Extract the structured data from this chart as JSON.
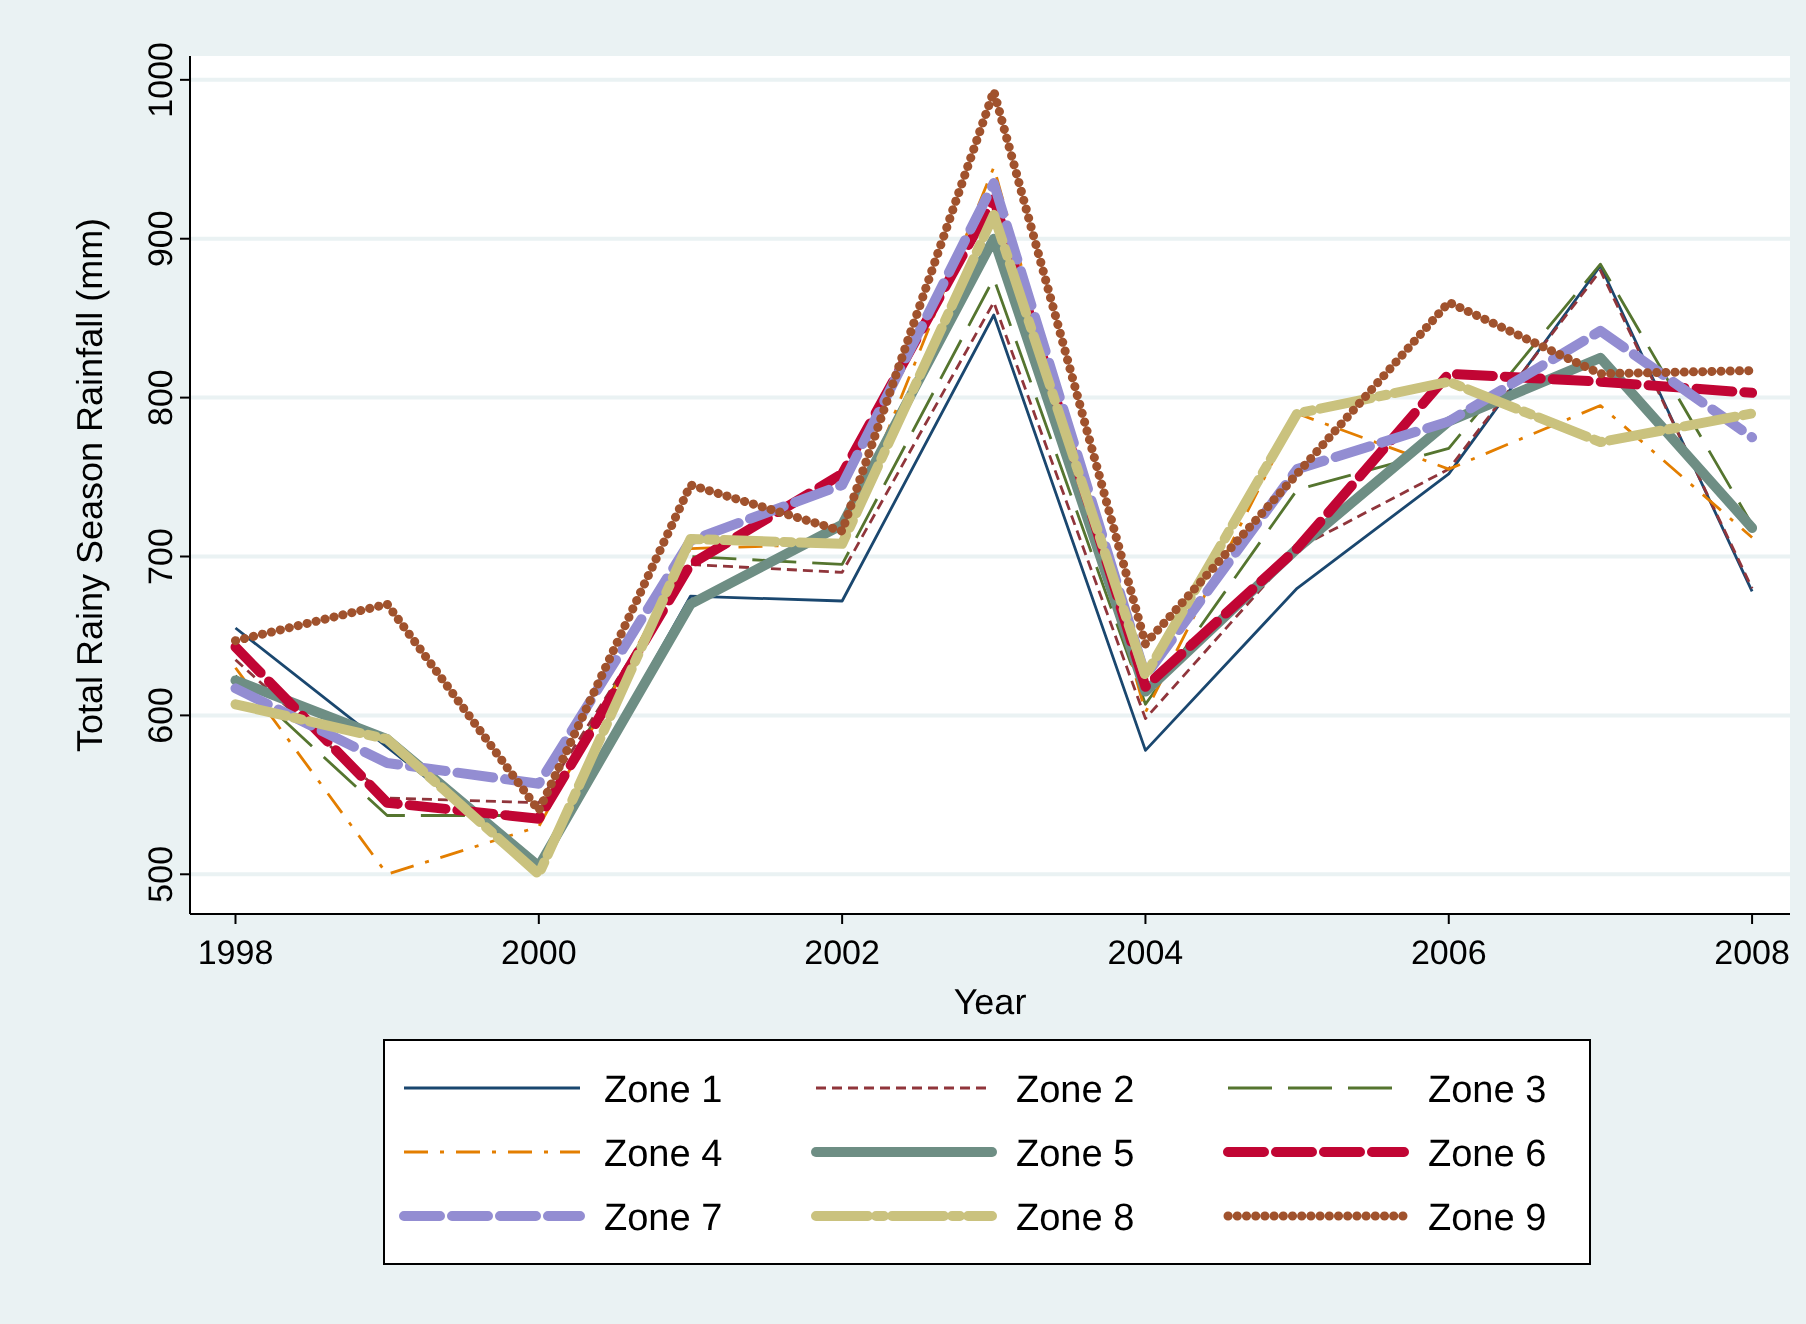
{
  "chart_data": {
    "type": "line",
    "xlabel": "Year",
    "ylabel": "Total Rainy Season Rainfall (mm)",
    "x": [
      1998,
      1999,
      2000,
      2001,
      2002,
      2003,
      2004,
      2005,
      2006,
      2007,
      2008
    ],
    "xlim": [
      1997.7,
      2008.25
    ],
    "xticks": [
      1998,
      2000,
      2002,
      2004,
      2006,
      2008
    ],
    "ylim": [
      475,
      1015
    ],
    "yticks": [
      500,
      600,
      700,
      800,
      900,
      1000
    ],
    "grid": "y",
    "legend": "bottom",
    "marker": "none",
    "series": [
      {
        "name": "Zone 1",
        "color": "#1a476f",
        "line_style": "solid",
        "values": [
          655,
          580,
          505,
          675,
          672,
          852,
          578,
          680,
          752,
          883,
          678
        ]
      },
      {
        "name": "Zone 2",
        "color": "#90353b",
        "line_style": "dashed",
        "values": [
          635,
          548,
          545,
          695,
          690,
          860,
          598,
          705,
          755,
          880,
          680
        ]
      },
      {
        "name": "Zone 3",
        "color": "#55752f",
        "line_style": "dashed",
        "values": [
          625,
          537,
          537,
          700,
          695,
          875,
          607,
          742,
          768,
          884,
          720
        ]
      },
      {
        "name": "Zone 4",
        "color": "#e37e00",
        "line_style": "dashdot",
        "values": [
          630,
          500,
          530,
          705,
          708,
          945,
          602,
          790,
          755,
          795,
          712
        ]
      },
      {
        "name": "Zone 5",
        "color": "#6e8e84",
        "line_style": "solid",
        "values": [
          622,
          585,
          505,
          670,
          720,
          900,
          615,
          705,
          785,
          825,
          718
        ]
      },
      {
        "name": "Zone 6",
        "color": "#c10534",
        "line_style": "dashed",
        "values": [
          643,
          545,
          535,
          695,
          752,
          925,
          618,
          705,
          815,
          810,
          803
        ]
      },
      {
        "name": "Zone 7",
        "color": "#938dd2",
        "line_style": "dashed",
        "values": [
          617,
          570,
          557,
          710,
          745,
          935,
          625,
          755,
          785,
          842,
          775
        ]
      },
      {
        "name": "Zone 8",
        "color": "#cac27e",
        "line_style": "dashdot",
        "values": [
          607,
          585,
          500,
          711,
          708,
          915,
          625,
          790,
          810,
          772,
          790
        ]
      },
      {
        "name": "Zone 9",
        "color": "#a0522d",
        "line_style": "dotted",
        "values": [
          647,
          670,
          540,
          745,
          716,
          993,
          645,
          752,
          860,
          815,
          817
        ]
      }
    ]
  }
}
